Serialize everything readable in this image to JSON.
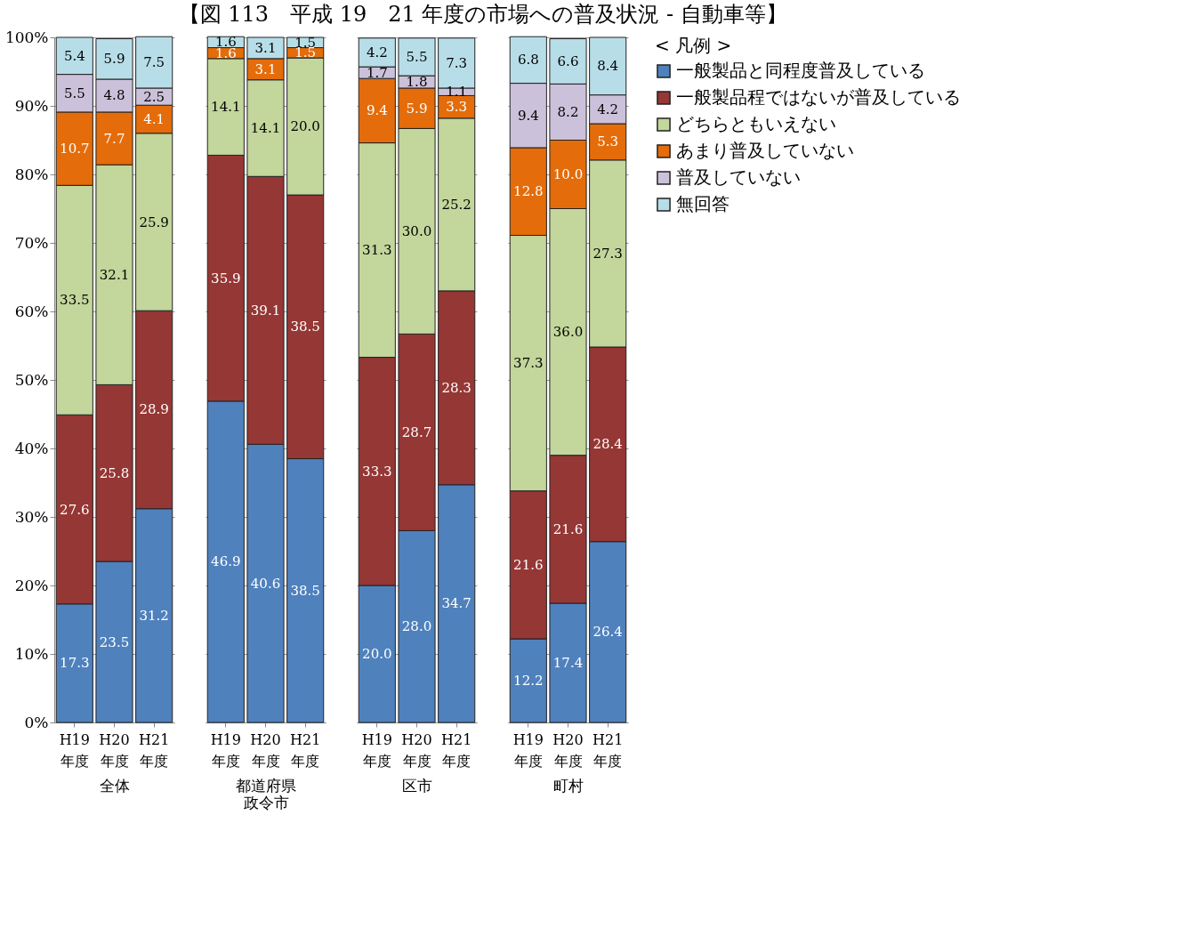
{
  "chart_data": [
    {
      "type": "bar",
      "title": "【図 113　平成 19　21 年度の市場への普及状況 - 自動車等】",
      "xlabel": "全体",
      "stacked": true,
      "categories": [
        "H19\n年度",
        "H20\n年度",
        "H21\n年度"
      ],
      "legend": "right",
      "legend_title": "< 凡例 >",
      "ylim": [
        0,
        100
      ],
      "yticks": [
        {
          "value": 0,
          "label": "0%"
        },
        {
          "value": 10,
          "label": "10%"
        },
        {
          "value": 20,
          "label": "20%"
        },
        {
          "value": 30,
          "label": "30%"
        },
        {
          "value": 40,
          "label": "40%"
        },
        {
          "value": 50,
          "label": "50%"
        },
        {
          "value": 60,
          "label": "60%"
        },
        {
          "value": 70,
          "label": "70%"
        },
        {
          "value": 80,
          "label": "80%"
        },
        {
          "value": 90,
          "label": "90%"
        },
        {
          "value": 100,
          "label": "100%"
        }
      ],
      "grid": "y",
      "series": [
        {
          "name": "一般製品と同程度普及している",
          "color": "#4f81bd",
          "values": [
            17.3,
            23.5,
            31.2
          ],
          "value_labels": [
            "17.3",
            "23.5",
            "31.2"
          ]
        },
        {
          "name": "一般製品程ではないが普及している",
          "color": "#953735",
          "values": [
            27.6,
            25.8,
            28.9
          ],
          "value_labels": [
            "27.6",
            "25.8",
            "28.9"
          ]
        },
        {
          "name": "どちらともいえない",
          "color": "#c3d69b",
          "values": [
            33.5,
            32.1,
            25.9
          ],
          "value_labels": [
            "33.5",
            "32.1",
            "25.9"
          ]
        },
        {
          "name": "あまり普及していない",
          "color": "#e46c0a",
          "values": [
            10.7,
            7.7,
            4.1
          ],
          "value_labels": [
            "10.7",
            "7.7",
            "4.1"
          ]
        },
        {
          "name": "普及していない",
          "color": "#ccc1da",
          "values": [
            5.5,
            4.8,
            2.5
          ],
          "value_labels": [
            "5.5",
            "4.8",
            "2.5"
          ]
        },
        {
          "name": "無回答",
          "color": "#b7dee8",
          "values": [
            5.4,
            5.9,
            7.5
          ],
          "value_labels": [
            "5.4",
            "5.9",
            "7.5"
          ]
        }
      ]
    },
    {
      "type": "bar",
      "xlabel": "都道府県政令市",
      "stacked": true,
      "categories": [
        "H19\n年度",
        "H20\n年度",
        "H21\n年度"
      ],
      "ylim": [
        0,
        100
      ],
      "yticks": [
        0,
        10,
        20,
        30,
        40,
        50,
        60,
        70,
        80,
        90,
        100
      ],
      "grid": "y",
      "tick_labels": "x",
      "series": [
        {
          "name": "一般製品と同程度普及している",
          "color": "#4f81bd",
          "values": [
            46.9,
            40.6,
            38.5
          ],
          "value_labels": [
            "46.9",
            "40.6",
            "38.5"
          ]
        },
        {
          "name": "一般製品程ではないが普及している",
          "color": "#953735",
          "values": [
            35.9,
            39.1,
            38.5
          ],
          "value_labels": [
            "35.9",
            "39.1",
            "38.5"
          ]
        },
        {
          "name": "どちらともいえない",
          "color": "#c3d69b",
          "values": [
            14.1,
            14.1,
            20.0
          ],
          "value_labels": [
            "14.1",
            "14.1",
            "20.0"
          ]
        },
        {
          "name": "あまり普及していない",
          "color": "#e46c0a",
          "values": [
            1.6,
            3.1,
            1.5
          ],
          "value_labels": [
            "1.6",
            "3.1",
            "1.5"
          ]
        },
        {
          "name": "普及していない",
          "color": "#ccc1da",
          "values": [
            null,
            null,
            null
          ],
          "value_labels": [
            null,
            null,
            null
          ]
        },
        {
          "name": "無回答",
          "color": "#b7dee8",
          "values": [
            1.6,
            3.1,
            1.5
          ],
          "value_labels": [
            "1.6",
            "3.1",
            "1.5"
          ]
        }
      ]
    },
    {
      "type": "bar",
      "xlabel": "区市",
      "stacked": true,
      "categories": [
        "H19\n年度",
        "H20\n年度",
        "H21\n年度"
      ],
      "ylim": [
        0,
        100
      ],
      "yticks": [
        0,
        10,
        20,
        30,
        40,
        50,
        60,
        70,
        80,
        90,
        100
      ],
      "grid": "y",
      "tick_labels": "x",
      "series": [
        {
          "name": "一般製品と同程度普及している",
          "color": "#4f81bd",
          "values": [
            20.0,
            28.0,
            34.7
          ],
          "value_labels": [
            "20.0",
            "28.0",
            "34.7"
          ]
        },
        {
          "name": "一般製品程ではないが普及している",
          "color": "#953735",
          "values": [
            33.3,
            28.7,
            28.3
          ],
          "value_labels": [
            "33.3",
            "28.7",
            "28.3"
          ]
        },
        {
          "name": "どちらともいえない",
          "color": "#c3d69b",
          "values": [
            31.3,
            30.0,
            25.2
          ],
          "value_labels": [
            "31.3",
            "30.0",
            "25.2"
          ]
        },
        {
          "name": "あまり普及していない",
          "color": "#e46c0a",
          "values": [
            9.4,
            5.9,
            3.3
          ],
          "value_labels": [
            "9.4",
            "5.9",
            "3.3"
          ]
        },
        {
          "name": "普及していない",
          "color": "#ccc1da",
          "values": [
            1.7,
            1.8,
            1.1
          ],
          "value_labels": [
            "1.7",
            "1.8",
            "1.1"
          ]
        },
        {
          "name": "無回答",
          "color": "#b7dee8",
          "values": [
            4.2,
            5.5,
            7.3
          ],
          "value_labels": [
            "4.2",
            "5.5",
            "7.3"
          ]
        }
      ]
    },
    {
      "type": "bar",
      "xlabel": "町村",
      "stacked": true,
      "categories": [
        "H19\n年度",
        "H20\n年度",
        "H21\n年度"
      ],
      "ylim": [
        0,
        100
      ],
      "yticks": [
        0,
        10,
        20,
        30,
        40,
        50,
        60,
        70,
        80,
        90,
        100
      ],
      "grid": "y",
      "tick_labels": "x",
      "series": [
        {
          "name": "一般製品と同程度普及している",
          "color": "#4f81bd",
          "values": [
            12.2,
            17.4,
            26.4
          ],
          "value_labels": [
            "12.2",
            "17.4",
            "26.4"
          ]
        },
        {
          "name": "一般製品程ではないが普及している",
          "color": "#953735",
          "values": [
            21.6,
            21.6,
            28.4
          ],
          "value_labels": [
            "21.6",
            "21.6",
            "28.4"
          ]
        },
        {
          "name": "どちらともいえない",
          "color": "#c3d69b",
          "values": [
            37.3,
            36.0,
            27.3
          ],
          "value_labels": [
            "37.3",
            "36.0",
            "27.3"
          ]
        },
        {
          "name": "あまり普及していない",
          "color": "#e46c0a",
          "values": [
            12.8,
            10.0,
            5.3
          ],
          "value_labels": [
            "12.8",
            "10.0",
            "5.3"
          ]
        },
        {
          "name": "普及していない",
          "color": "#ccc1da",
          "values": [
            9.4,
            8.2,
            4.2
          ],
          "value_labels": [
            "9.4",
            "8.2",
            "4.2"
          ]
        },
        {
          "name": "無回答",
          "color": "#b7dee8",
          "values": [
            6.8,
            6.6,
            8.4
          ],
          "value_labels": [
            "6.8",
            "6.6",
            "8.4"
          ]
        }
      ]
    }
  ]
}
